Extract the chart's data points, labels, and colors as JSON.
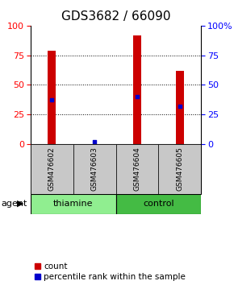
{
  "title": "GDS3682 / 66090",
  "samples": [
    "GSM476602",
    "GSM476603",
    "GSM476604",
    "GSM476605"
  ],
  "counts": [
    79,
    0,
    92,
    62
  ],
  "percentiles": [
    37,
    2,
    40,
    32
  ],
  "groups": [
    {
      "label": "thiamine",
      "samples": [
        0,
        1
      ],
      "color": "#90EE90"
    },
    {
      "label": "control",
      "samples": [
        2,
        3
      ],
      "color": "#44BB44"
    }
  ],
  "bar_color": "#CC0000",
  "percentile_color": "#0000CC",
  "ylim": [
    0,
    100
  ],
  "yticks": [
    0,
    25,
    50,
    75,
    100
  ],
  "bg_sample_color": "#C8C8C8",
  "title_fontsize": 11,
  "tick_fontsize": 8,
  "sample_fontsize": 6.5,
  "group_fontsize": 8,
  "legend_fontsize": 7.5,
  "agent_label": "agent",
  "legend_count": "count",
  "legend_percentile": "percentile rank within the sample"
}
